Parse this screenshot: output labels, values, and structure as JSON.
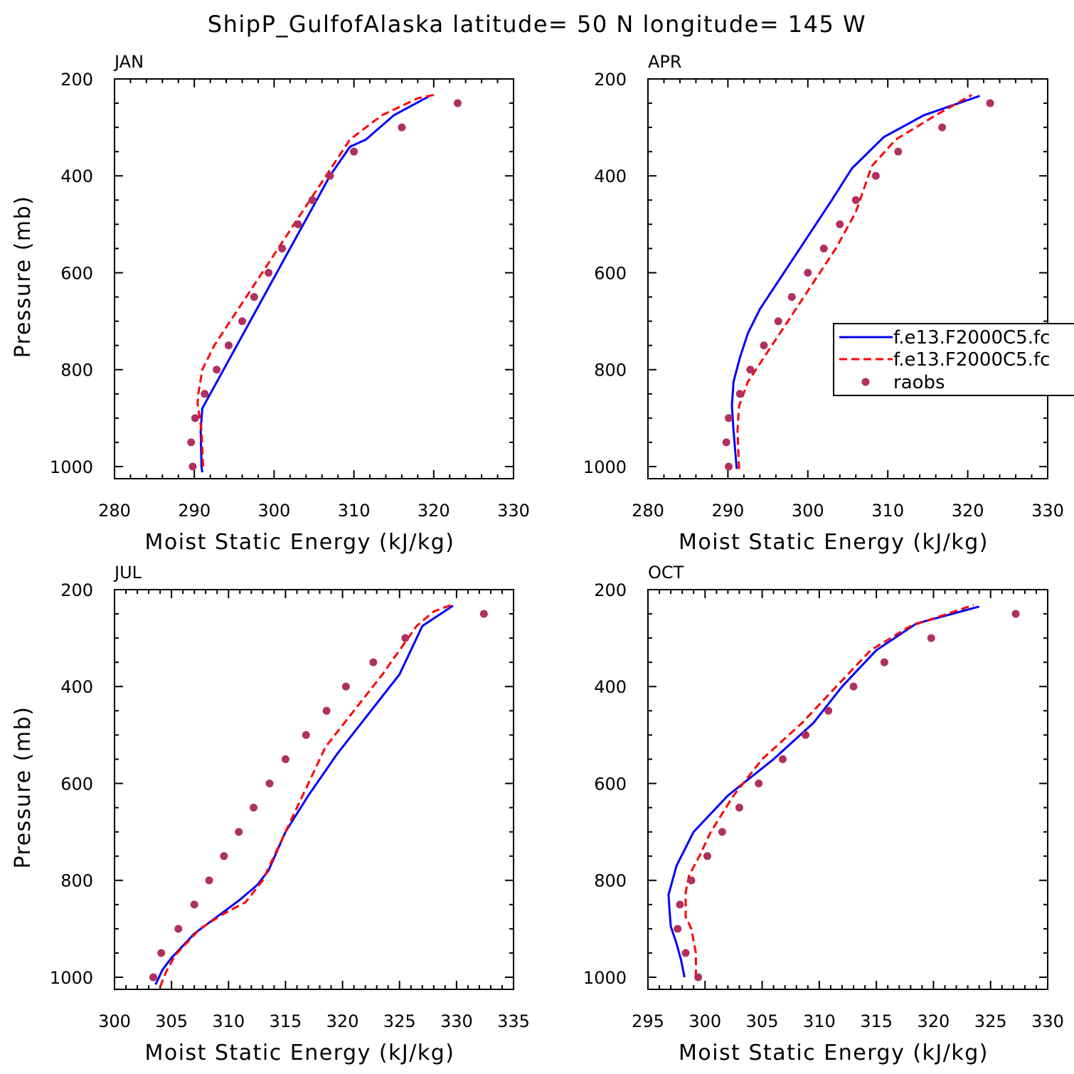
{
  "figure": {
    "title": "ShipP_GulfofAlaska  latitude= 50 N longitude= 145 W"
  },
  "colors": {
    "series1": "#0000ff",
    "series2": "#ff0000",
    "raobs": "#b03060"
  },
  "legend": {
    "placement": "right-middle of APR panel",
    "entries": [
      "f.e13.F2000C5.fc",
      "f.e13.F2000C5.fc",
      "raobs"
    ]
  },
  "chart_data": [
    {
      "type": "line",
      "panel": "JAN",
      "xlabel": "Moist Static Energy (kJ/kg)",
      "ylabel": "Pressure (mb)",
      "xlim": [
        280,
        330
      ],
      "ylim": [
        1025,
        200
      ],
      "y_reversed": true,
      "xticks": [
        280,
        290,
        300,
        310,
        320,
        330
      ],
      "yticks": [
        200,
        400,
        600,
        800,
        1000
      ],
      "series": [
        {
          "style": "solid-blue",
          "x": [
            291.0,
            290.9,
            290.8,
            291.0,
            292.0,
            294.5,
            297.0,
            299.5,
            302.0,
            304.5,
            307.0,
            309.5,
            311.5,
            315.0,
            319.5
          ],
          "y": [
            1012,
            1000,
            925,
            880,
            850,
            775,
            700,
            625,
            550,
            475,
            400,
            340,
            325,
            275,
            235
          ]
        },
        {
          "style": "dashed-red",
          "x": [
            291.1,
            290.9,
            290.4,
            290.5,
            291.0,
            292.5,
            295.5,
            298.5,
            301.5,
            304.5,
            307.5,
            309.5,
            313.5,
            318.0,
            320.0
          ],
          "y": [
            1000,
            925,
            870,
            850,
            800,
            750,
            675,
            600,
            525,
            450,
            375,
            325,
            275,
            240,
            233
          ]
        },
        {
          "style": "markers",
          "x": [
            289.8,
            289.6,
            290.1,
            291.3,
            292.8,
            294.3,
            296.0,
            297.5,
            299.3,
            301.0,
            303.0,
            304.8,
            307.0,
            310.0,
            316.0,
            323.0
          ],
          "y": [
            1000,
            950,
            900,
            850,
            800,
            750,
            700,
            650,
            600,
            550,
            500,
            450,
            400,
            350,
            300,
            250
          ]
        }
      ]
    },
    {
      "type": "line",
      "panel": "APR",
      "xlabel": "Moist Static Energy (kJ/kg)",
      "ylabel": "",
      "xlim": [
        280,
        330
      ],
      "ylim": [
        1025,
        200
      ],
      "y_reversed": true,
      "xticks": [
        280,
        290,
        300,
        310,
        320,
        330
      ],
      "yticks": [
        200,
        400,
        600,
        800,
        1000
      ],
      "series": [
        {
          "style": "solid-blue",
          "x": [
            291.1,
            290.7,
            290.5,
            290.7,
            291.5,
            292.5,
            294.0,
            297.0,
            300.0,
            303.0,
            305.5,
            309.5,
            314.5,
            321.5
          ],
          "y": [
            1005,
            925,
            875,
            825,
            775,
            725,
            675,
            600,
            525,
            450,
            385,
            320,
            275,
            235
          ]
        },
        {
          "style": "dashed-red",
          "x": [
            291.4,
            291.2,
            291.4,
            292.5,
            294.5,
            297.5,
            300.5,
            303.5,
            306.0,
            308.0,
            311.0,
            316.0,
            320.5
          ],
          "y": [
            1005,
            925,
            875,
            825,
            775,
            700,
            625,
            550,
            475,
            380,
            325,
            275,
            233
          ]
        },
        {
          "style": "markers",
          "x": [
            290.1,
            289.8,
            290.1,
            291.5,
            292.8,
            294.5,
            296.3,
            298.0,
            300.0,
            302.0,
            304.0,
            306.0,
            308.5,
            311.3,
            316.8,
            322.8
          ],
          "y": [
            1000,
            950,
            900,
            850,
            800,
            750,
            700,
            650,
            600,
            550,
            500,
            450,
            400,
            350,
            300,
            250
          ]
        }
      ]
    },
    {
      "type": "line",
      "panel": "JUL",
      "xlabel": "Moist Static Energy (kJ/kg)",
      "ylabel": "Pressure (mb)",
      "xlim": [
        300,
        335
      ],
      "ylim": [
        1025,
        200
      ],
      "y_reversed": true,
      "xticks": [
        300,
        305,
        310,
        315,
        320,
        325,
        330,
        335
      ],
      "yticks": [
        200,
        400,
        600,
        800,
        1000
      ],
      "series": [
        {
          "style": "solid-blue",
          "x": [
            303.6,
            304.2,
            305.0,
            306.0,
            307.0,
            309.0,
            311.0,
            312.5,
            313.5,
            315.0,
            317.0,
            319.5,
            322.5,
            325.0,
            327.0,
            329.7
          ],
          "y": [
            1015,
            985,
            960,
            935,
            910,
            875,
            840,
            810,
            780,
            700,
            625,
            540,
            450,
            375,
            275,
            233
          ]
        },
        {
          "style": "dashed-red",
          "x": [
            304.0,
            304.5,
            305.3,
            306.5,
            307.5,
            309.5,
            311.5,
            313.0,
            314.5,
            316.5,
            318.5,
            321.0,
            323.5,
            326.5,
            328.0,
            329.5
          ],
          "y": [
            1020,
            990,
            955,
            925,
            900,
            870,
            845,
            800,
            725,
            625,
            525,
            450,
            375,
            275,
            245,
            232
          ]
        },
        {
          "style": "markers",
          "x": [
            303.4,
            304.1,
            305.6,
            307.0,
            308.3,
            309.6,
            310.9,
            312.2,
            313.6,
            315.0,
            316.8,
            318.6,
            320.3,
            322.7,
            325.5,
            332.4
          ],
          "y": [
            1000,
            950,
            900,
            850,
            800,
            750,
            700,
            650,
            600,
            550,
            500,
            450,
            400,
            350,
            300,
            250
          ]
        }
      ]
    },
    {
      "type": "line",
      "panel": "OCT",
      "xlabel": "Moist Static Energy (kJ/kg)",
      "ylabel": "",
      "xlim": [
        295,
        330
      ],
      "ylim": [
        1025,
        200
      ],
      "y_reversed": true,
      "xticks": [
        295,
        300,
        305,
        310,
        315,
        320,
        325,
        330
      ],
      "yticks": [
        200,
        400,
        600,
        800,
        1000
      ],
      "series": [
        {
          "style": "solid-blue",
          "x": [
            298.2,
            297.9,
            297.5,
            297.0,
            296.9,
            296.8,
            297.5,
            299.0,
            302.0,
            306.0,
            309.5,
            312.0,
            315.0,
            318.5,
            324.0
          ],
          "y": [
            1000,
            965,
            930,
            895,
            865,
            830,
            770,
            700,
            625,
            550,
            475,
            400,
            325,
            270,
            235
          ]
        },
        {
          "style": "dashed-red",
          "x": [
            299.2,
            299.2,
            298.8,
            298.3,
            298.3,
            298.6,
            299.5,
            300.5,
            302.5,
            305.0,
            308.5,
            311.5,
            314.5,
            318.0,
            323.5
          ],
          "y": [
            1000,
            950,
            900,
            875,
            825,
            790,
            750,
            700,
            625,
            550,
            475,
            400,
            325,
            275,
            232
          ]
        },
        {
          "style": "markers",
          "x": [
            299.4,
            298.3,
            297.6,
            297.8,
            298.8,
            300.2,
            301.5,
            303.0,
            304.7,
            306.8,
            308.8,
            310.8,
            313.0,
            315.7,
            319.8,
            327.2
          ],
          "y": [
            1000,
            950,
            900,
            850,
            800,
            750,
            700,
            650,
            600,
            550,
            500,
            450,
            400,
            350,
            300,
            250
          ]
        }
      ]
    }
  ]
}
